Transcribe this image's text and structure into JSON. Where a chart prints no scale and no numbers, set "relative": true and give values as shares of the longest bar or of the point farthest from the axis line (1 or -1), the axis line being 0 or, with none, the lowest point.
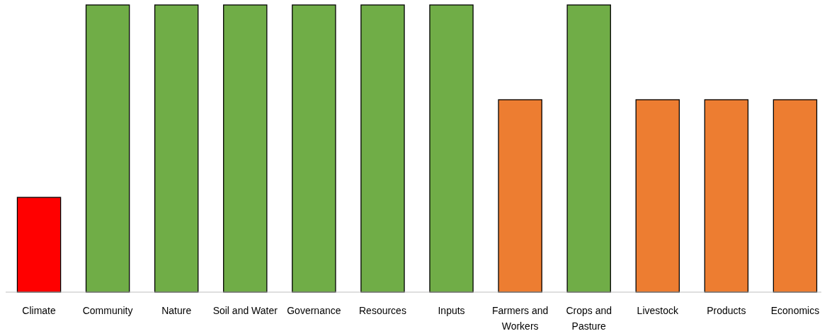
{
  "chart_data": {
    "type": "bar",
    "relative": true,
    "categories": [
      "Climate",
      "Community",
      "Nature",
      "Soil and Water",
      "Governance",
      "Resources",
      "Inputs",
      "Farmers and Workers",
      "Crops and Pasture",
      "Livestock",
      "Products",
      "Economics"
    ],
    "values": [
      0.33,
      1,
      1,
      1,
      1,
      1,
      1,
      0.67,
      1,
      0.67,
      0.67,
      0.67
    ],
    "colors": [
      "#ff0000",
      "#70ad47",
      "#70ad47",
      "#70ad47",
      "#70ad47",
      "#70ad47",
      "#70ad47",
      "#ed7d31",
      "#70ad47",
      "#ed7d31",
      "#ed7d31",
      "#ed7d31"
    ]
  }
}
